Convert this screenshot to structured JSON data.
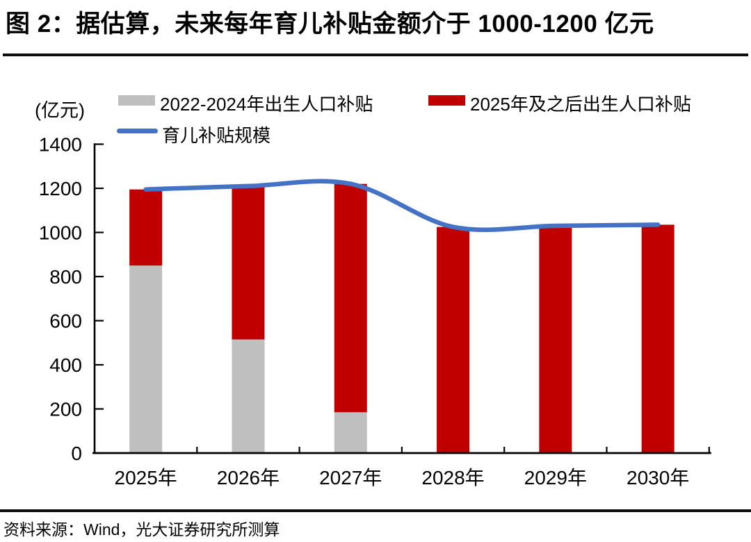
{
  "title": "图 2：据估算，未来每年育儿补贴金额介于 1000-1200 亿元",
  "source": "资料来源：Wind，光大证券研究所测算",
  "y_axis_unit": "(亿元)",
  "colors": {
    "bar_gray": "#BFBFBF",
    "bar_red": "#C00000",
    "line_blue": "#4472C4",
    "axis_black": "#000000"
  },
  "legend": [
    {
      "label": "2022-2024年出生人口补贴",
      "type": "bar",
      "color_key": "bar_gray"
    },
    {
      "label": "2025年及之后出生人口补贴",
      "type": "bar",
      "color_key": "bar_red"
    },
    {
      "label": "育儿补贴规模",
      "type": "line",
      "color_key": "line_blue"
    }
  ],
  "chart_data": {
    "type": "bar",
    "subtype": "stacked-bars-with-smoothed-line",
    "title": "图 2：据估算，未来每年育儿补贴金额介于 1000-1200 亿元",
    "categories": [
      "2025年",
      "2026年",
      "2027年",
      "2028年",
      "2029年",
      "2030年"
    ],
    "series": [
      {
        "name": "2022-2024年出生人口补贴",
        "type": "bar",
        "stacked": true,
        "color": "#BFBFBF",
        "values": [
          850,
          515,
          185,
          0,
          0,
          0
        ]
      },
      {
        "name": "2025年及之后出生人口补贴",
        "type": "bar",
        "stacked": true,
        "color": "#C00000",
        "values": [
          345,
          695,
          1035,
          1025,
          1030,
          1035
        ]
      },
      {
        "name": "育儿补贴规模",
        "type": "line",
        "smooth": true,
        "color": "#4472C4",
        "values": [
          1195,
          1210,
          1220,
          1025,
          1030,
          1035
        ]
      }
    ],
    "stacked_totals": [
      1195,
      1210,
      1220,
      1025,
      1030,
      1035
    ],
    "xlabel": "",
    "ylabel": "(亿元)",
    "ylim": [
      0,
      1400
    ],
    "y_ticks": [
      0,
      200,
      400,
      600,
      800,
      1000,
      1200,
      1400
    ],
    "grid": false,
    "legend_position": "top"
  }
}
